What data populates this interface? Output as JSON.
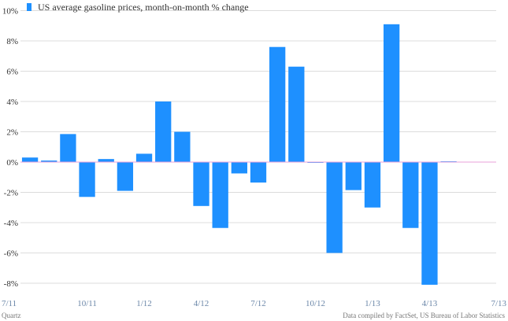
{
  "chart_data": {
    "type": "bar",
    "title": "",
    "xlabel": "",
    "ylabel": "",
    "legend": {
      "label": "US average gasoline prices, month-on-month % change",
      "placement": "top-left"
    },
    "color": "#1e90ff",
    "zero_line_color": "#e8a0d8",
    "ylim": [
      -9,
      10
    ],
    "yticks": [
      10,
      8,
      6,
      4,
      2,
      0,
      -2,
      -4,
      -6,
      -8
    ],
    "ytick_labels": [
      "10%",
      "8%",
      "6%",
      "4%",
      "2%",
      "0%",
      "-2%",
      "-4%",
      "-6%",
      "-8%"
    ],
    "xtick_labels": [
      {
        "label": "7/11",
        "index": 0
      },
      {
        "label": "10/11",
        "index": 3
      },
      {
        "label": "1/12",
        "index": 6
      },
      {
        "label": "4/12",
        "index": 9
      },
      {
        "label": "7/12",
        "index": 12
      },
      {
        "label": "10/12",
        "index": 15
      },
      {
        "label": "1/13",
        "index": 18
      },
      {
        "label": "4/13",
        "index": 21
      },
      {
        "label": "7/13",
        "index": 24
      }
    ],
    "categories": [
      "7/11",
      "8/11",
      "9/11",
      "10/11",
      "11/11",
      "12/11",
      "1/12",
      "2/12",
      "3/12",
      "4/12",
      "5/12",
      "6/12",
      "7/12",
      "8/12",
      "9/12",
      "10/12",
      "11/12",
      "12/12",
      "1/13",
      "2/13",
      "3/13",
      "4/13",
      "5/13",
      "6/13",
      "7/13"
    ],
    "values": [
      0.3,
      0.1,
      1.85,
      -2.3,
      0.2,
      -1.9,
      0.55,
      4.0,
      2.0,
      -2.9,
      -4.35,
      -0.75,
      -1.35,
      7.6,
      6.3,
      -0.05,
      -6.0,
      -1.85,
      -3.0,
      9.1,
      -4.35,
      -8.1,
      0.05,
      0.0,
      0.0
    ]
  },
  "footer": {
    "credit": "Quartz",
    "source": "Data compiled by FactSet, US Bureau of Labor Statistics"
  }
}
